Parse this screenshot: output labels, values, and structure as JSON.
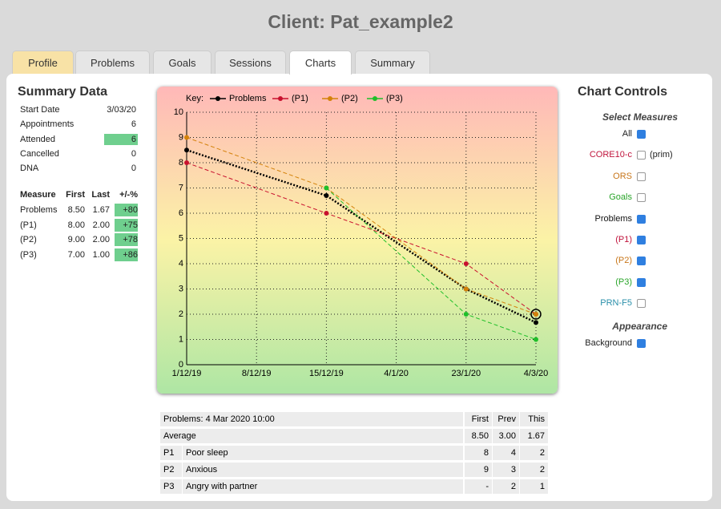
{
  "header": {
    "title": "Client: Pat_example2"
  },
  "tabs": [
    "Profile",
    "Problems",
    "Goals",
    "Sessions",
    "Charts",
    "Summary"
  ],
  "summary": {
    "title": "Summary Data",
    "rows": [
      [
        "Start Date",
        "3/03/20"
      ],
      [
        "Appointments",
        "6"
      ],
      [
        "Attended",
        "6"
      ],
      [
        "Cancelled",
        "0"
      ],
      [
        "DNA",
        "0"
      ]
    ],
    "measures": {
      "header": [
        "Measure",
        "First",
        "Last",
        "+/-%"
      ],
      "rows": [
        [
          "Problems",
          "8.50",
          "1.67",
          "+80"
        ],
        [
          "(P1)",
          "8.00",
          "2.00",
          "+75"
        ],
        [
          "(P2)",
          "9.00",
          "2.00",
          "+78"
        ],
        [
          "(P3)",
          "7.00",
          "1.00",
          "+86"
        ]
      ]
    }
  },
  "chart_data": {
    "type": "line",
    "key_label": "Key:",
    "categories": [
      "1/12/19",
      "8/12/19",
      "15/12/19",
      "4/1/20",
      "23/1/20",
      "4/3/20"
    ],
    "x": [
      "1/12/19",
      "15/12/19",
      "23/1/20",
      "4/3/20"
    ],
    "ylim": [
      0,
      10
    ],
    "yticks": [
      0,
      1,
      2,
      3,
      4,
      5,
      6,
      7,
      8,
      9,
      10
    ],
    "grid": true,
    "series": [
      {
        "name": "Problems",
        "color": "#000000",
        "values": [
          8.5,
          6.7,
          3,
          1.67
        ]
      },
      {
        "name": "(P1)",
        "color": "#c8102e",
        "values": [
          8,
          6,
          4,
          2
        ]
      },
      {
        "name": "(P2)",
        "color": "#d4820a",
        "values": [
          9,
          7,
          3,
          2
        ]
      },
      {
        "name": "(P3)",
        "color": "#1fbf2a",
        "values": [
          null,
          7,
          2,
          1
        ]
      }
    ]
  },
  "controls": {
    "title": "Chart Controls",
    "measures_title": "Select Measures",
    "measures": [
      {
        "label": "All",
        "checked": true
      },
      {
        "label": "CORE10-c",
        "checked": false,
        "note": "(prim)"
      },
      {
        "label": "ORS",
        "checked": false
      },
      {
        "label": "Goals",
        "checked": false
      },
      {
        "label": "Problems",
        "checked": true
      },
      {
        "label": "(P1)",
        "checked": true
      },
      {
        "label": "(P2)",
        "checked": true
      },
      {
        "label": "(P3)",
        "checked": true
      },
      {
        "label": "PRN-F5",
        "checked": false
      }
    ],
    "appearance_title": "Appearance",
    "appearance": [
      {
        "label": "Background",
        "checked": true
      }
    ]
  },
  "table": {
    "header": [
      "Problems: 4 Mar 2020 10:00",
      "First",
      "Prev",
      "This"
    ],
    "average": [
      "Average",
      "8.50",
      "3.00",
      "1.67"
    ],
    "rows": [
      [
        "P1",
        "Poor sleep",
        "8",
        "4",
        "2"
      ],
      [
        "P2",
        "Anxious",
        "9",
        "3",
        "2"
      ],
      [
        "P3",
        "Angry with partner",
        "-",
        "2",
        "1"
      ]
    ]
  }
}
